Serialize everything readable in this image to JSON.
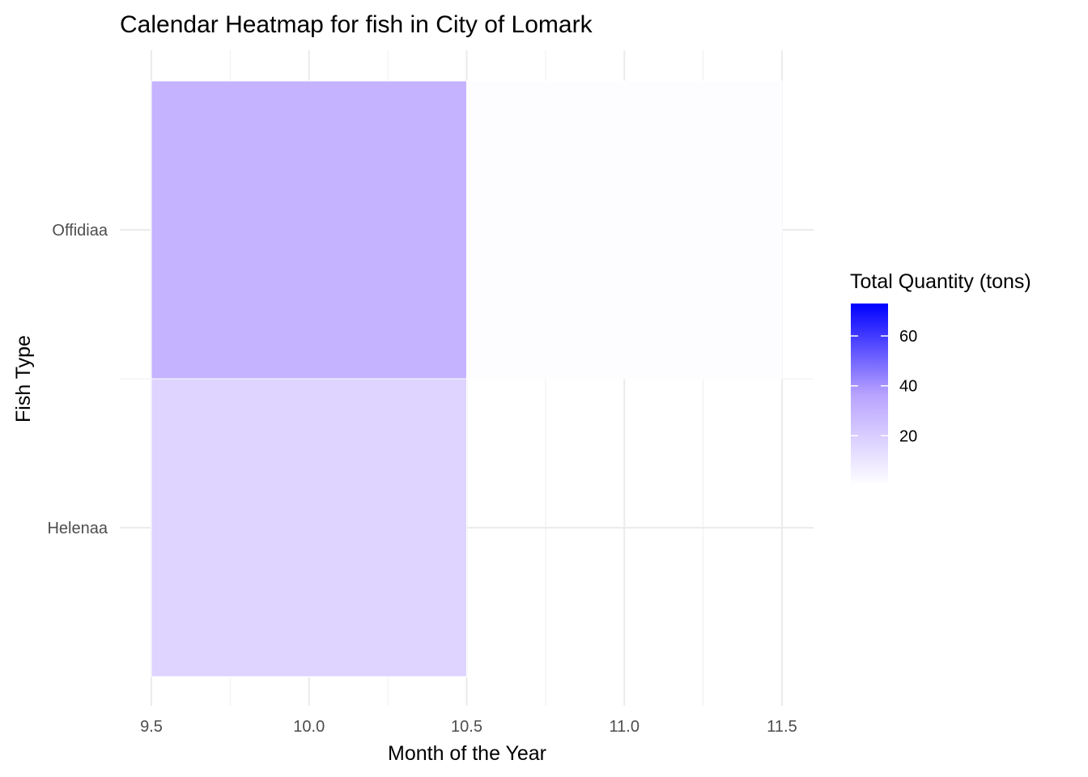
{
  "chart_data": {
    "type": "heatmap",
    "title": "Calendar Heatmap for fish in City of Lomark",
    "xlabel": "Month of the Year",
    "ylabel": "Fish Type",
    "xlim": [
      9.5,
      11.5
    ],
    "x_ticks": [
      "9.5",
      "10.0",
      "10.5",
      "11.0",
      "11.5"
    ],
    "x_tick_values": [
      9.5,
      10.0,
      10.5,
      11.0,
      11.5
    ],
    "y_categories": [
      "Helenaa",
      "Offidiaa"
    ],
    "cells": [
      {
        "fish": "Offidiaa",
        "month": 10,
        "value": 30
      },
      {
        "fish": "Offidiaa",
        "month": 11,
        "value": 1
      },
      {
        "fish": "Helenaa",
        "month": 10,
        "value": 17
      }
    ],
    "grid": true,
    "legend": {
      "title": "Total Quantity (tons)",
      "placement": "right",
      "low_color": "#ffffff",
      "high_color": "#0000ff",
      "min": 0,
      "max": 73,
      "ticks": [
        "20",
        "40",
        "60"
      ],
      "tick_values": [
        20,
        40,
        60
      ]
    }
  }
}
